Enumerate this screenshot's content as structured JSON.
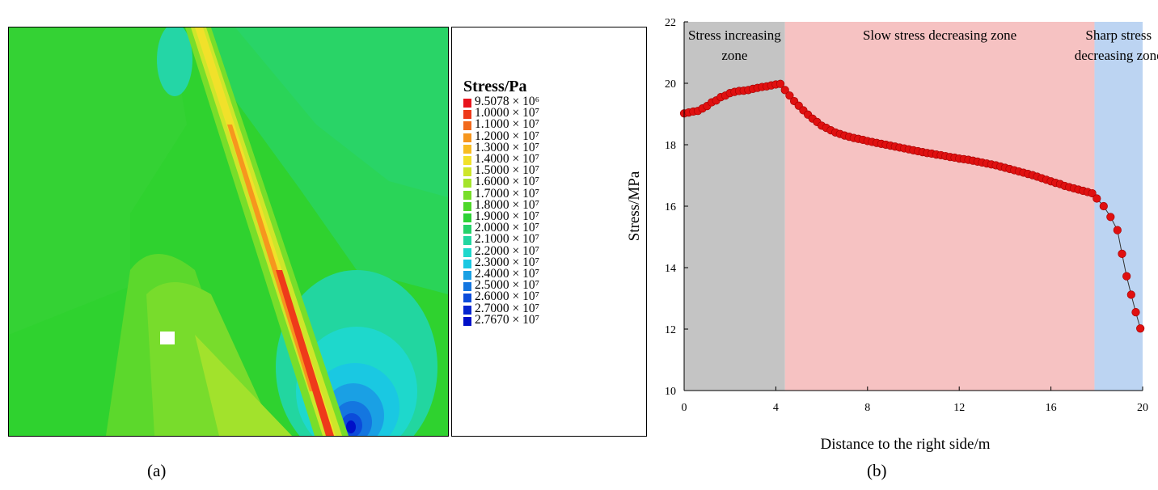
{
  "panel_a": {
    "caption": "(a)",
    "legend_title": "Stress/Pa",
    "legend": [
      {
        "label": "9.5078 × 10⁶",
        "color": "#e8141c"
      },
      {
        "label": "1.0000 × 10⁷",
        "color": "#ee3a1a"
      },
      {
        "label": "1.1000 × 10⁷",
        "color": "#f26a1c"
      },
      {
        "label": "1.2000 × 10⁷",
        "color": "#f6961e"
      },
      {
        "label": "1.3000 × 10⁷",
        "color": "#f8bc22"
      },
      {
        "label": "1.4000 × 10⁷",
        "color": "#f1e12a"
      },
      {
        "label": "1.5000 × 10⁷",
        "color": "#cee62a"
      },
      {
        "label": "1.6000 × 10⁷",
        "color": "#a4e42a"
      },
      {
        "label": "1.7000 × 10⁷",
        "color": "#78de2a"
      },
      {
        "label": "1.8000 × 10⁷",
        "color": "#4ed82a"
      },
      {
        "label": "1.9000 × 10⁷",
        "color": "#2ed236"
      },
      {
        "label": "2.0000 × 10⁷",
        "color": "#26d26a"
      },
      {
        "label": "2.1000 × 10⁷",
        "color": "#22d6a0"
      },
      {
        "label": "2.2000 × 10⁷",
        "color": "#1ed8cc"
      },
      {
        "label": "2.3000 × 10⁷",
        "color": "#1ac8e2"
      },
      {
        "label": "2.4000 × 10⁷",
        "color": "#1aa0e4"
      },
      {
        "label": "2.5000 × 10⁷",
        "color": "#1476e0"
      },
      {
        "label": "2.6000 × 10⁷",
        "color": "#0c4cda"
      },
      {
        "label": "2.7000 × 10⁷",
        "color": "#0626d0"
      },
      {
        "label": "2.7670 × 10⁷",
        "color": "#0010c8"
      }
    ]
  },
  "panel_b": {
    "caption": "(b)"
  },
  "chart_data": {
    "type": "scatter",
    "xlabel": "Distance to the right side/m",
    "ylabel": "Stress/MPa",
    "xlim": [
      0,
      20
    ],
    "ylim": [
      10,
      22
    ],
    "xticks": [
      0,
      4,
      8,
      12,
      16,
      20
    ],
    "yticks": [
      10,
      12,
      14,
      16,
      18,
      20,
      22
    ],
    "zones": [
      {
        "label_lines": [
          "Stress increasing",
          "zone"
        ],
        "x_start": 0,
        "x_end": 4.4,
        "color": "#c4c4c4"
      },
      {
        "label_lines": [
          "Slow stress decreasing zone"
        ],
        "x_start": 4.4,
        "x_end": 17.9,
        "color": "#f6c2c2"
      },
      {
        "label_lines": [
          "Sharp stress",
          "decreasing zone"
        ],
        "x_start": 17.9,
        "x_end": 20,
        "color": "#bcd4f2"
      }
    ],
    "series": [
      {
        "marker_color": "#e01010",
        "line_color": "#333333",
        "x": [
          0,
          0.2,
          0.4,
          0.6,
          0.8,
          1.0,
          1.2,
          1.4,
          1.6,
          1.8,
          2.0,
          2.2,
          2.4,
          2.6,
          2.8,
          3.0,
          3.2,
          3.4,
          3.6,
          3.8,
          4.0,
          4.2,
          4.4,
          4.6,
          4.8,
          5.0,
          5.2,
          5.4,
          5.6,
          5.8,
          6.0,
          6.2,
          6.4,
          6.6,
          6.8,
          7.0,
          7.2,
          7.4,
          7.6,
          7.8,
          8.0,
          8.2,
          8.4,
          8.6,
          8.8,
          9.0,
          9.2,
          9.4,
          9.6,
          9.8,
          10.0,
          10.2,
          10.4,
          10.6,
          10.8,
          11.0,
          11.2,
          11.4,
          11.6,
          11.8,
          12.0,
          12.2,
          12.4,
          12.6,
          12.8,
          13.0,
          13.2,
          13.4,
          13.6,
          13.8,
          14.0,
          14.2,
          14.4,
          14.6,
          14.8,
          15.0,
          15.2,
          15.4,
          15.6,
          15.8,
          16.0,
          16.2,
          16.4,
          16.6,
          16.8,
          17.0,
          17.2,
          17.4,
          17.6,
          17.8,
          18.0,
          18.3,
          18.6,
          18.9,
          19.1,
          19.3,
          19.5,
          19.7,
          19.9
        ],
        "y": [
          19.02,
          19.05,
          19.08,
          19.1,
          19.18,
          19.26,
          19.38,
          19.44,
          19.55,
          19.6,
          19.68,
          19.72,
          19.75,
          19.76,
          19.78,
          19.82,
          19.85,
          19.88,
          19.9,
          19.93,
          19.96,
          19.98,
          19.78,
          19.6,
          19.42,
          19.27,
          19.12,
          18.98,
          18.85,
          18.74,
          18.62,
          18.55,
          18.47,
          18.4,
          18.35,
          18.3,
          18.26,
          18.22,
          18.19,
          18.16,
          18.12,
          18.09,
          18.06,
          18.03,
          18.0,
          17.97,
          17.94,
          17.91,
          17.88,
          17.85,
          17.82,
          17.79,
          17.76,
          17.73,
          17.71,
          17.68,
          17.66,
          17.63,
          17.6,
          17.58,
          17.55,
          17.53,
          17.51,
          17.48,
          17.45,
          17.42,
          17.39,
          17.36,
          17.33,
          17.29,
          17.25,
          17.21,
          17.17,
          17.13,
          17.09,
          17.05,
          17.01,
          16.96,
          16.91,
          16.86,
          16.81,
          16.76,
          16.72,
          16.66,
          16.62,
          16.58,
          16.54,
          16.5,
          16.46,
          16.42,
          16.25,
          16.0,
          15.65,
          15.22,
          14.45,
          13.72,
          13.12,
          12.55,
          12.02
        ]
      }
    ]
  }
}
